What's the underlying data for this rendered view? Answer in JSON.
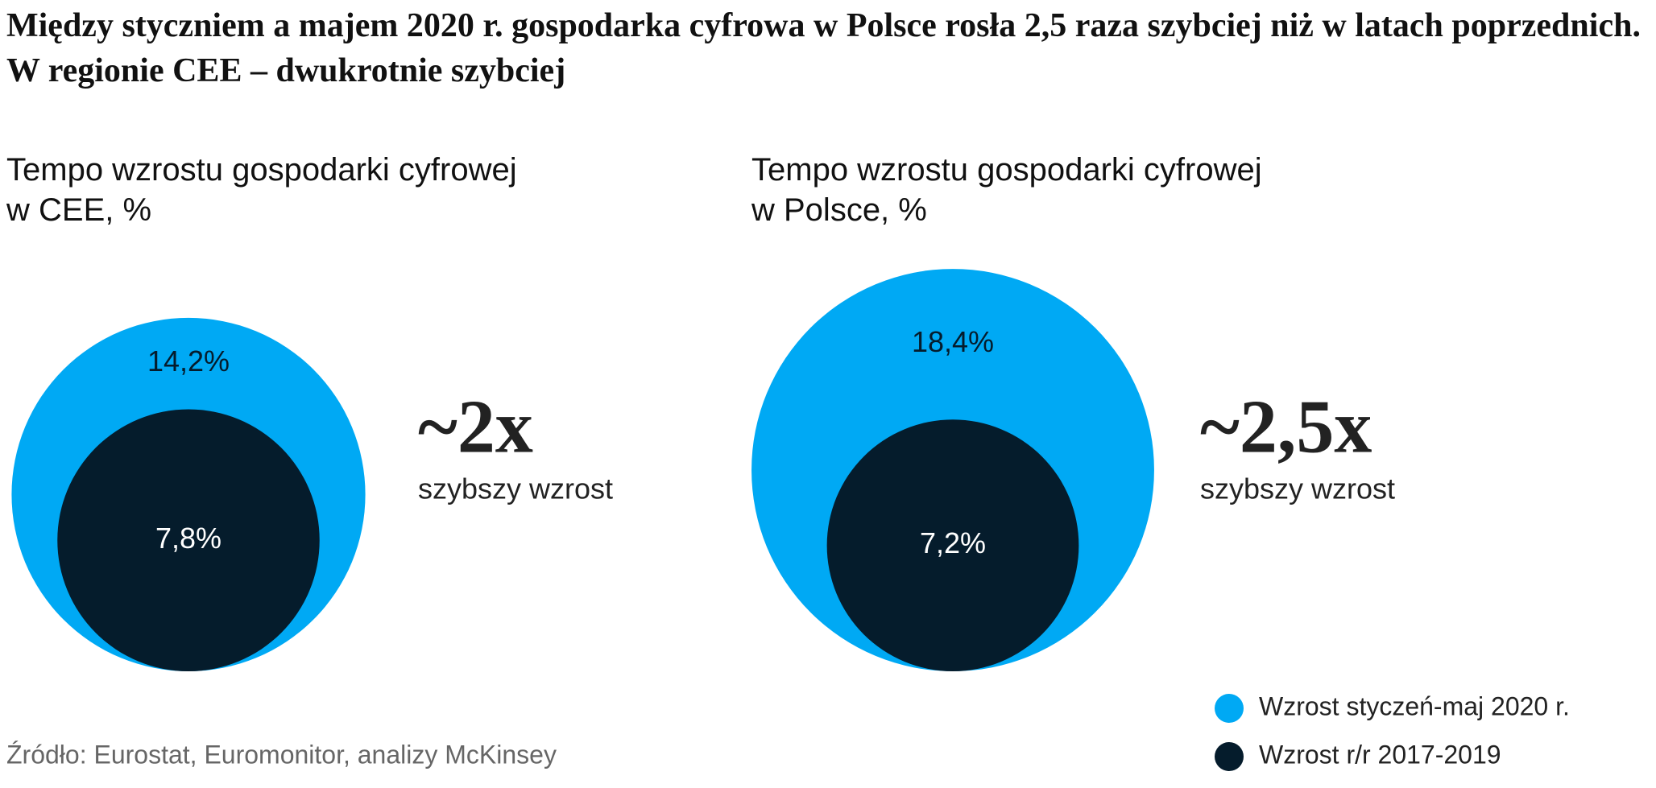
{
  "chart_data": {
    "type": "bubble",
    "title": "Między styczniem a majem 2020 r. gospodarka cyfrowa w Polsce rosła 2,5 raza szybciej niż w latach poprzednich. W regionie CEE – dwukrotnie szybciej",
    "categories": [
      "Tempo wzrostu gospodarki cyfrowej w CEE, %",
      "Tempo wzrostu gospodarki cyfrowej w Polsce, %"
    ],
    "series": [
      {
        "name": "Wzrost styczeń-maj 2020 r.",
        "color": "#00a9f4",
        "values": [
          14.2,
          18.4
        ],
        "value_labels": [
          "14,2%",
          "18,4%"
        ]
      },
      {
        "name": "Wzrost r/r 2017-2019",
        "color": "#051c2c",
        "values": [
          7.8,
          7.2
        ],
        "value_labels": [
          "7,8%",
          "7,2%"
        ]
      }
    ],
    "annotations": [
      {
        "text": "~2x",
        "subtext": "szybszy wzrost"
      },
      {
        "text": "~2,5x",
        "subtext": "szybszy wzrost"
      }
    ],
    "source": "Źródło: Eurostat, Euromonitor, analizy McKinsey"
  }
}
